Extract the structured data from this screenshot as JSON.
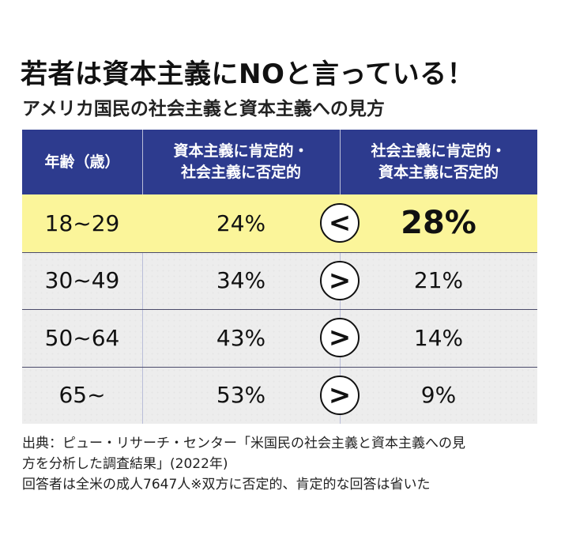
{
  "title": "若者は資本主義にNOと言っている！",
  "subtitle": "アメリカ国民の社会主義と資本主義への見方",
  "colors": {
    "header_bg": "#2d3b8e",
    "highlight_row": "#fbf59a",
    "header_text": "#ffffff"
  },
  "chart_data": {
    "type": "table",
    "columns": [
      {
        "lines": [
          "年齢（歳）"
        ]
      },
      {
        "lines": [
          "資本主義に肯定的・",
          "社会主義に否定的"
        ]
      },
      {
        "lines": [
          "社会主義に肯定的・",
          "資本主義に否定的"
        ]
      }
    ],
    "rows": [
      {
        "age": "18~29",
        "capitalism_positive": "24%",
        "comparison": "<",
        "socialism_positive": "28%",
        "highlight": true
      },
      {
        "age": "30~49",
        "capitalism_positive": "34%",
        "comparison": ">",
        "socialism_positive": "21%",
        "highlight": false
      },
      {
        "age": "50~64",
        "capitalism_positive": "43%",
        "comparison": ">",
        "socialism_positive": "14%",
        "highlight": false
      },
      {
        "age": "65~",
        "capitalism_positive": "53%",
        "comparison": ">",
        "socialism_positive": "9%",
        "highlight": false
      }
    ]
  },
  "notes": [
    "出典：ピュー・リサーチ・センター「米国民の社会主義と資本主義への見",
    "方を分析した調査結果」(2022年)",
    "回答者は全米の成人7647人※双方に否定的、肯定的な回答は省いた"
  ]
}
